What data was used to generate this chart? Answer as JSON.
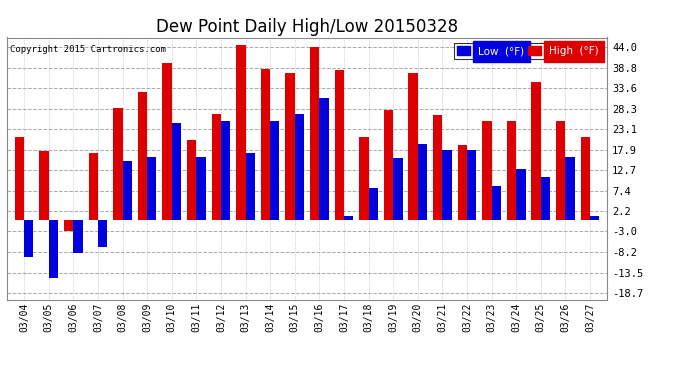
{
  "title": "Dew Point Daily High/Low 20150328",
  "copyright": "Copyright 2015 Cartronics.com",
  "dates": [
    "03/04",
    "03/05",
    "03/06",
    "03/07",
    "03/08",
    "03/09",
    "03/10",
    "03/11",
    "03/12",
    "03/13",
    "03/14",
    "03/15",
    "03/16",
    "03/17",
    "03/18",
    "03/19",
    "03/20",
    "03/21",
    "03/22",
    "03/23",
    "03/24",
    "03/25",
    "03/26",
    "03/27"
  ],
  "low": [
    -9.4,
    -14.8,
    -8.6,
    -7.0,
    15.1,
    16.0,
    24.8,
    16.0,
    25.2,
    16.9,
    25.2,
    27.0,
    31.0,
    1.0,
    8.0,
    15.8,
    19.4,
    17.9,
    17.9,
    8.6,
    13.0,
    11.0,
    16.0,
    1.0
  ],
  "high": [
    21.2,
    17.6,
    -3.0,
    16.9,
    28.4,
    32.5,
    39.9,
    20.3,
    27.0,
    44.6,
    38.5,
    37.4,
    44.2,
    38.3,
    21.2,
    28.0,
    37.4,
    26.6,
    19.0,
    25.2,
    25.2,
    35.1,
    25.2,
    21.0
  ],
  "low_color": "#0000dd",
  "high_color": "#dd0000",
  "bg_color": "#ffffff",
  "grid_color": "#aaaaaa",
  "yticks": [
    -18.7,
    -13.5,
    -8.2,
    -3.0,
    2.2,
    7.4,
    12.7,
    17.9,
    23.1,
    28.3,
    33.6,
    38.8,
    44.0
  ],
  "ylim": [
    -20.5,
    46.5
  ],
  "title_fontsize": 12,
  "legend_low_label": "Low  (°F)",
  "legend_high_label": "High  (°F)",
  "bar_width": 0.38
}
